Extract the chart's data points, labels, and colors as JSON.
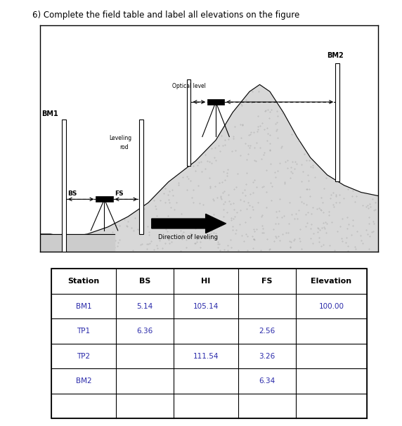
{
  "title": "6) Complete the field table and label all elevations on the figure",
  "title_fontsize": 8.5,
  "table_headers": [
    "Station",
    "BS",
    "HI",
    "FS",
    "Elevation"
  ],
  "table_rows": [
    [
      "BM1",
      "5.14",
      "105.14",
      "",
      "100.00"
    ],
    [
      "TP1",
      "6.36",
      "",
      "2.56",
      ""
    ],
    [
      "TP2",
      "",
      "111.54",
      "3.26",
      ""
    ],
    [
      "BM2",
      "",
      "",
      "6.34",
      ""
    ],
    [
      "",
      "",
      "",
      "",
      ""
    ]
  ],
  "text_color": "#2a2aaa",
  "header_color": "#1a1a1a",
  "bg_color": "#ffffff",
  "diagram_bg": "#ffffff",
  "terrain_fill": "#d8d8d8",
  "terrain_dot_color": "#aaaaaa"
}
